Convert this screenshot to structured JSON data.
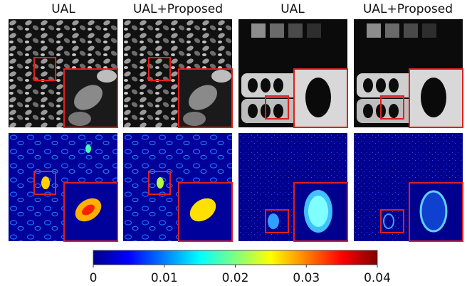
{
  "columns": [
    "UAL",
    "UAL+Proposed",
    "UAL",
    "UAL+Proposed"
  ],
  "colorbar": {
    "lim": [
      0,
      0.04
    ],
    "ticks": [
      0,
      0.01,
      0.02,
      0.03,
      0.04
    ]
  }
}
